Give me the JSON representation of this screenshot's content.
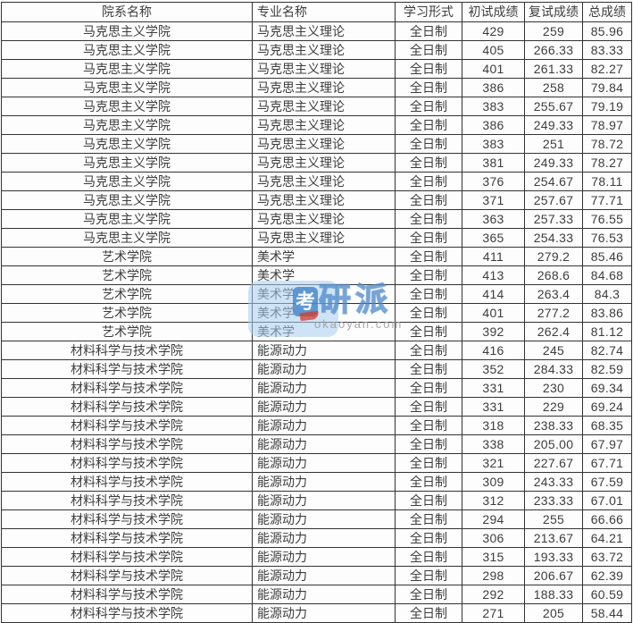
{
  "watermark": {
    "badge_char": "考",
    "logo_text": "研派",
    "site_url": "okaoyan.com",
    "colors": {
      "badge_blue": "#3e82c8",
      "logo_blue": "#4a86c8",
      "highlight_blue": "#a8ceee",
      "swoosh_red": "#d43a2a",
      "url_gray": "#9e9e9e"
    }
  },
  "table": {
    "columns": [
      {
        "key": "dept",
        "label": "院系名称"
      },
      {
        "key": "major",
        "label": "专业名称"
      },
      {
        "key": "mode",
        "label": "学习形式"
      },
      {
        "key": "initial",
        "label": "初试成绩"
      },
      {
        "key": "retest",
        "label": "复试成绩"
      },
      {
        "key": "total",
        "label": "总成绩"
      }
    ],
    "rows": [
      [
        "马克思主义学院",
        "马克思主义理论",
        "全日制",
        "429",
        "259",
        "85.96"
      ],
      [
        "马克思主义学院",
        "马克思主义理论",
        "全日制",
        "405",
        "266.33",
        "83.33"
      ],
      [
        "马克思主义学院",
        "马克思主义理论",
        "全日制",
        "401",
        "261.33",
        "82.27"
      ],
      [
        "马克思主义学院",
        "马克思主义理论",
        "全日制",
        "386",
        "258",
        "79.84"
      ],
      [
        "马克思主义学院",
        "马克思主义理论",
        "全日制",
        "383",
        "255.67",
        "79.19"
      ],
      [
        "马克思主义学院",
        "马克思主义理论",
        "全日制",
        "386",
        "249.33",
        "78.97"
      ],
      [
        "马克思主义学院",
        "马克思主义理论",
        "全日制",
        "383",
        "251",
        "78.72"
      ],
      [
        "马克思主义学院",
        "马克思主义理论",
        "全日制",
        "381",
        "249.33",
        "78.27"
      ],
      [
        "马克思主义学院",
        "马克思主义理论",
        "全日制",
        "376",
        "254.67",
        "78.11"
      ],
      [
        "马克思主义学院",
        "马克思主义理论",
        "全日制",
        "371",
        "257.67",
        "77.71"
      ],
      [
        "马克思主义学院",
        "马克思主义理论",
        "全日制",
        "363",
        "257.33",
        "76.55"
      ],
      [
        "马克思主义学院",
        "马克思主义理论",
        "全日制",
        "365",
        "254.33",
        "76.53"
      ],
      [
        "艺术学院",
        "美术学",
        "全日制",
        "411",
        "279.2",
        "85.46"
      ],
      [
        "艺术学院",
        "美术学",
        "全日制",
        "413",
        "268.6",
        "84.68"
      ],
      [
        "艺术学院",
        "美术学",
        "全日制",
        "414",
        "263.4",
        "84.3"
      ],
      [
        "艺术学院",
        "美术学",
        "全日制",
        "401",
        "277.2",
        "83.86"
      ],
      [
        "艺术学院",
        "美术学",
        "全日制",
        "392",
        "262.4",
        "81.12"
      ],
      [
        "材料科学与技术学院",
        "能源动力",
        "全日制",
        "416",
        "245",
        "82.74"
      ],
      [
        "材料科学与技术学院",
        "能源动力",
        "全日制",
        "352",
        "284.33",
        "82.59"
      ],
      [
        "材料科学与技术学院",
        "能源动力",
        "全日制",
        "331",
        "230",
        "69.34"
      ],
      [
        "材料科学与技术学院",
        "能源动力",
        "全日制",
        "331",
        "229",
        "69.24"
      ],
      [
        "材料科学与技术学院",
        "能源动力",
        "全日制",
        "318",
        "238.33",
        "68.35"
      ],
      [
        "材料科学与技术学院",
        "能源动力",
        "全日制",
        "338",
        "205.00",
        "67.97"
      ],
      [
        "材料科学与技术学院",
        "能源动力",
        "全日制",
        "321",
        "227.67",
        "67.71"
      ],
      [
        "材料科学与技术学院",
        "能源动力",
        "全日制",
        "309",
        "243.33",
        "67.59"
      ],
      [
        "材料科学与技术学院",
        "能源动力",
        "全日制",
        "312",
        "233.33",
        "67.01"
      ],
      [
        "材料科学与技术学院",
        "能源动力",
        "全日制",
        "294",
        "255",
        "66.66"
      ],
      [
        "材料科学与技术学院",
        "能源动力",
        "全日制",
        "306",
        "213.67",
        "64.21"
      ],
      [
        "材料科学与技术学院",
        "能源动力",
        "全日制",
        "315",
        "193.33",
        "63.72"
      ],
      [
        "材料科学与技术学院",
        "能源动力",
        "全日制",
        "298",
        "206.67",
        "62.39"
      ],
      [
        "材料科学与技术学院",
        "能源动力",
        "全日制",
        "292",
        "188.33",
        "60.59"
      ],
      [
        "材料科学与技术学院",
        "能源动力",
        "全日制",
        "271",
        "205",
        "58.44"
      ]
    ]
  }
}
